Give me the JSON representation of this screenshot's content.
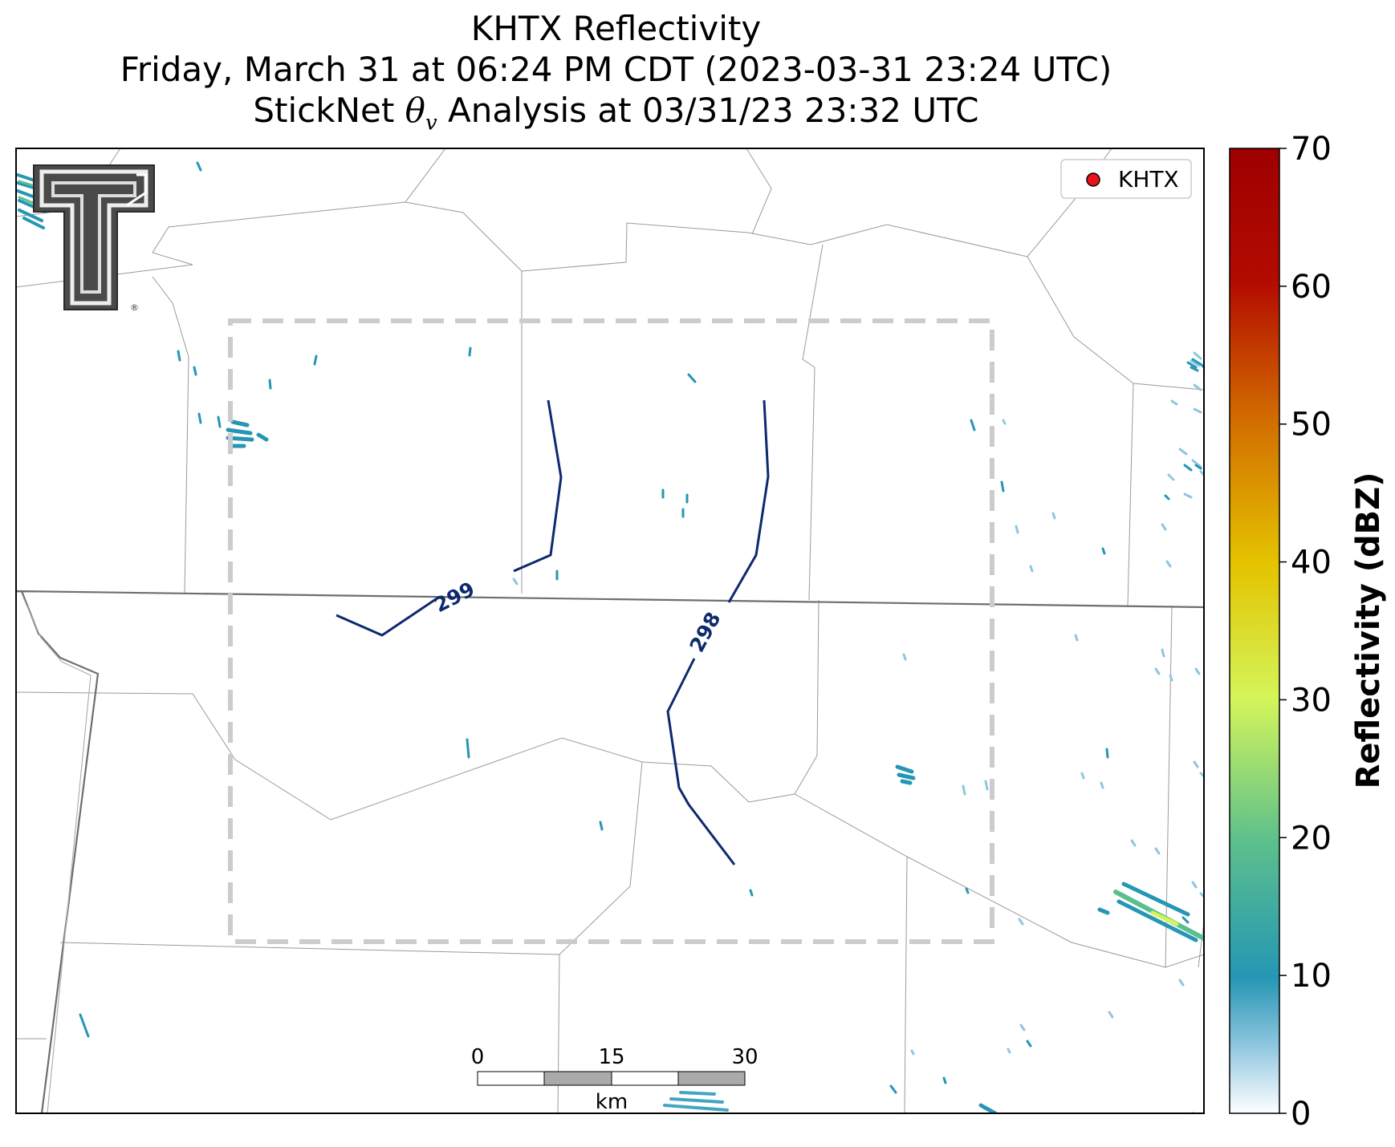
{
  "title": {
    "line1": "KHTX Reflectivity",
    "line2": "Friday, March 31 at 06:24 PM CDT (2023-03-31 23:24 UTC)",
    "line3_prefix": "StickNet ",
    "line3_theta": "θ",
    "line3_sub": "v",
    "line3_suffix": " Analysis at 03/31/23 23:32 UTC"
  },
  "legend": {
    "label": "KHTX",
    "marker_color": "#e8141c"
  },
  "contours": [
    {
      "label": "299",
      "value": 299,
      "color": "#0d2a6e"
    },
    {
      "label": "298",
      "value": 298,
      "color": "#0d2a6e"
    }
  ],
  "scalebar": {
    "ticks": [
      "0",
      "15",
      "30"
    ],
    "unit": "km"
  },
  "colorbar": {
    "label": "Reflectivity (dBZ)",
    "ticks": [
      "0",
      "10",
      "20",
      "30",
      "40",
      "50",
      "60",
      "70"
    ],
    "min": 0,
    "max": 70,
    "colors": [
      "#ffffff",
      "#8fc6e0",
      "#2596b4",
      "#5bbf8d",
      "#d4f55a",
      "#e4c300",
      "#d26c00",
      "#b30c00",
      "#9e0000"
    ]
  },
  "logo": {
    "icon": "double-t-logo-icon",
    "registered": "®"
  }
}
